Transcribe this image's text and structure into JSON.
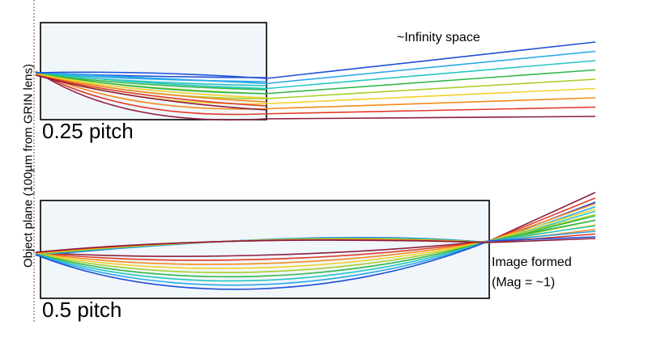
{
  "labels": {
    "object_plane": "Object plane (100µm from GRIN lens)",
    "infinity_space": "~Infinity space",
    "pitch_quarter": "0.25 pitch",
    "pitch_half": "0.5 pitch",
    "image_formed": "Image formed",
    "magnification": "(Mag = ~1)"
  },
  "colors": {
    "lens_fill": "#f1f6fb",
    "lens_border": "#000000",
    "object_plane_line": "#555555",
    "ray_palette": [
      "#1f4fd6",
      "#2aa7ea",
      "#27c5c0",
      "#2fb84a",
      "#a8cf2a",
      "#f2d12a",
      "#f28a1c",
      "#e33a2a",
      "#8b1e3f"
    ]
  },
  "ray_count": 9
}
